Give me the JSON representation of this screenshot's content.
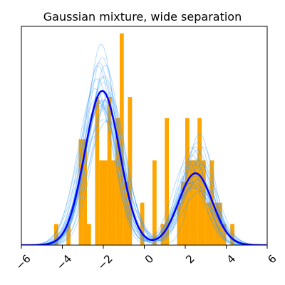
{
  "chart_data": {
    "type": "histogram+density",
    "title": "Gaussian mixture, wide separation",
    "xlim": [
      -6,
      6
    ],
    "ylim": [
      0,
      0.62
    ],
    "y_ticks_visible": false,
    "x_ticks": [
      -6,
      -4,
      -2,
      0,
      2,
      4,
      6
    ],
    "x_tick_labels": [
      "−6",
      "−4",
      "−2",
      "0",
      "2",
      "4",
      "6"
    ],
    "x_tick_rotation_deg": 45,
    "grid": false,
    "histogram": {
      "color": "#ffa500",
      "bin_width": 0.2,
      "bins": [
        {
          "x0": -4.4,
          "height": 0.06
        },
        {
          "x0": -3.8,
          "height": 0.06
        },
        {
          "x0": -3.2,
          "height": 0.3
        },
        {
          "x0": -3.0,
          "height": 0.3
        },
        {
          "x0": -2.8,
          "height": 0.06
        },
        {
          "x0": -2.4,
          "height": 0.42
        },
        {
          "x0": -2.2,
          "height": 0.24
        },
        {
          "x0": -2.0,
          "height": 0.24
        },
        {
          "x0": -1.8,
          "height": 0.42
        },
        {
          "x0": -1.6,
          "height": 0.24
        },
        {
          "x0": -1.4,
          "height": 0.36
        },
        {
          "x0": -1.2,
          "height": 0.6
        },
        {
          "x0": -1.0,
          "height": 0.18
        },
        {
          "x0": -0.8,
          "height": 0.42
        },
        {
          "x0": -0.2,
          "height": 0.12
        },
        {
          "x0": 0.4,
          "height": 0.24
        },
        {
          "x0": 0.8,
          "height": 0.06
        },
        {
          "x0": 1.0,
          "height": 0.36
        },
        {
          "x0": 1.6,
          "height": 0.12
        },
        {
          "x0": 1.8,
          "height": 0.18
        },
        {
          "x0": 2.0,
          "height": 0.36
        },
        {
          "x0": 2.2,
          "height": 0.24
        },
        {
          "x0": 2.4,
          "height": 0.24
        },
        {
          "x0": 2.6,
          "height": 0.36
        },
        {
          "x0": 2.8,
          "height": 0.24
        },
        {
          "x0": 3.0,
          "height": 0.12
        },
        {
          "x0": 3.2,
          "height": 0.24
        },
        {
          "x0": 3.4,
          "height": 0.12
        },
        {
          "x0": 3.6,
          "height": 0.12
        },
        {
          "x0": 3.8,
          "height": 0.06
        },
        {
          "x0": 4.2,
          "height": 0.06
        }
      ]
    },
    "posterior_sample_curves": {
      "color": "#3399ff",
      "count": 24,
      "components": [
        {
          "mu1": -2.0,
          "s1": 0.85,
          "w1": 0.68,
          "mu2": 2.5,
          "s2": 0.75
        },
        {
          "mu1": -2.2,
          "s1": 0.75,
          "w1": 0.72,
          "mu2": 2.3,
          "s2": 0.85
        },
        {
          "mu1": -1.9,
          "s1": 0.9,
          "w1": 0.65,
          "mu2": 2.6,
          "s2": 0.7
        },
        {
          "mu1": -2.3,
          "s1": 0.8,
          "w1": 0.7,
          "mu2": 2.4,
          "s2": 0.9
        },
        {
          "mu1": -1.8,
          "s1": 0.95,
          "w1": 0.62,
          "mu2": 2.7,
          "s2": 0.65
        },
        {
          "mu1": -2.1,
          "s1": 0.7,
          "w1": 0.74,
          "mu2": 2.2,
          "s2": 0.8
        },
        {
          "mu1": -2.0,
          "s1": 1.0,
          "w1": 0.66,
          "mu2": 2.8,
          "s2": 0.8
        },
        {
          "mu1": -2.4,
          "s1": 0.85,
          "w1": 0.7,
          "mu2": 2.5,
          "s2": 0.95
        },
        {
          "mu1": -1.7,
          "s1": 0.8,
          "w1": 0.64,
          "mu2": 2.3,
          "s2": 0.7
        },
        {
          "mu1": -2.2,
          "s1": 0.95,
          "w1": 0.71,
          "mu2": 2.6,
          "s2": 0.85
        },
        {
          "mu1": -2.0,
          "s1": 0.78,
          "w1": 0.69,
          "mu2": 2.9,
          "s2": 0.6
        },
        {
          "mu1": -2.1,
          "s1": 0.88,
          "w1": 0.67,
          "mu2": 2.1,
          "s2": 0.75
        },
        {
          "mu1": -1.95,
          "s1": 0.82,
          "w1": 0.73,
          "mu2": 2.45,
          "s2": 0.9
        },
        {
          "mu1": -2.25,
          "s1": 0.72,
          "w1": 0.68,
          "mu2": 2.65,
          "s2": 0.72
        },
        {
          "mu1": -1.85,
          "s1": 0.92,
          "w1": 0.7,
          "mu2": 2.35,
          "s2": 0.68
        },
        {
          "mu1": -2.15,
          "s1": 0.86,
          "w1": 0.63,
          "mu2": 2.55,
          "s2": 0.82
        },
        {
          "mu1": -2.05,
          "s1": 0.76,
          "w1": 0.75,
          "mu2": 2.75,
          "s2": 0.88
        },
        {
          "mu1": -2.35,
          "s1": 0.9,
          "w1": 0.69,
          "mu2": 2.25,
          "s2": 0.78
        },
        {
          "mu1": -1.75,
          "s1": 0.84,
          "w1": 0.66,
          "mu2": 2.5,
          "s2": 0.66
        },
        {
          "mu1": -2.0,
          "s1": 0.94,
          "w1": 0.72,
          "mu2": 2.4,
          "s2": 0.92
        },
        {
          "mu1": -2.1,
          "s1": 0.8,
          "w1": 0.6,
          "mu2": 2.6,
          "s2": 0.74
        },
        {
          "mu1": -1.9,
          "s1": 0.74,
          "w1": 0.7,
          "mu2": 2.7,
          "s2": 0.86
        },
        {
          "mu1": -2.2,
          "s1": 0.88,
          "w1": 0.67,
          "mu2": 2.35,
          "s2": 0.7
        },
        {
          "mu1": -2.0,
          "s1": 0.83,
          "w1": 0.71,
          "mu2": 2.5,
          "s2": 0.8
        }
      ]
    },
    "mean_curve": {
      "color": "#0000ff",
      "mu1": -2.05,
      "s1": 0.85,
      "w1": 0.69,
      "mu2": 2.5,
      "s2": 0.82
    }
  }
}
